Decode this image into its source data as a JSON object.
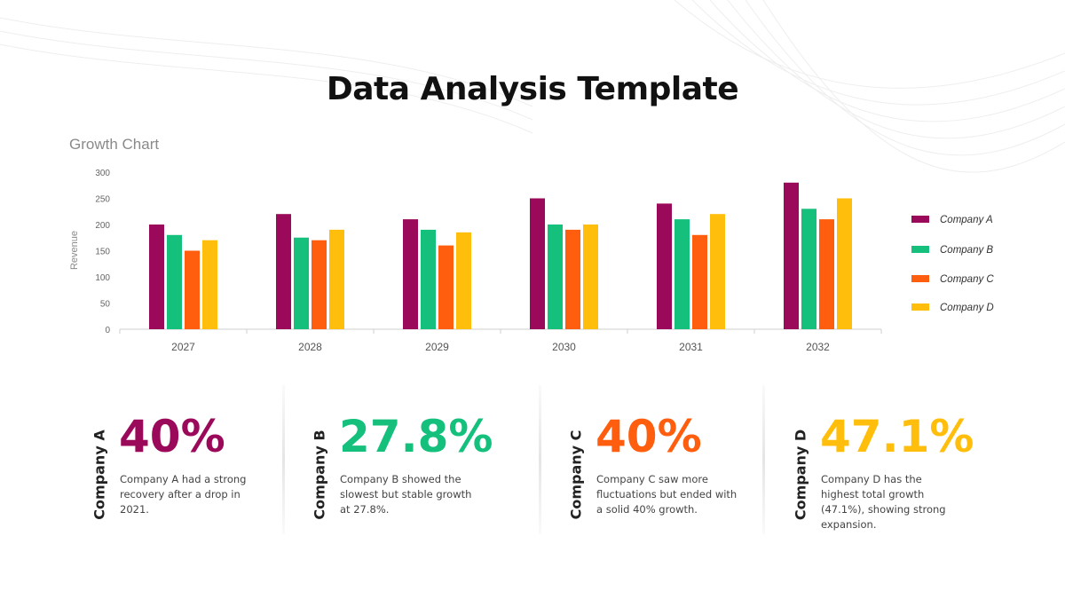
{
  "page": {
    "title": "Data Analysis Template"
  },
  "chart_data": {
    "type": "bar",
    "title": "Growth Chart",
    "xlabel": "",
    "ylabel": "Revenue",
    "ylim": [
      0,
      300
    ],
    "yticks": [
      0,
      50,
      100,
      150,
      200,
      250,
      300
    ],
    "categories": [
      "2027",
      "2028",
      "2029",
      "2030",
      "2031",
      "2032"
    ],
    "series": [
      {
        "name": "Company A",
        "color": "#9b0a5a",
        "values": [
          200,
          220,
          210,
          250,
          240,
          280
        ]
      },
      {
        "name": "Company B",
        "color": "#14c07c",
        "values": [
          180,
          175,
          190,
          200,
          210,
          230
        ]
      },
      {
        "name": "Company C",
        "color": "#ff5e0e",
        "values": [
          150,
          170,
          160,
          190,
          180,
          210
        ]
      },
      {
        "name": "Company D",
        "color": "#ffbe0b",
        "values": [
          170,
          190,
          185,
          200,
          220,
          250
        ]
      }
    ],
    "legend": "right",
    "grid": false
  },
  "stats": [
    {
      "name": "Company A",
      "value": "40%",
      "color": "#9b0a5a",
      "description": "Company A had a strong recovery after a drop in 2021."
    },
    {
      "name": "Company B",
      "value": "27.8%",
      "color": "#14c07c",
      "description": "Company B showed the slowest but stable growth at 27.8%."
    },
    {
      "name": "Company C",
      "value": "40%",
      "color": "#ff5e0e",
      "description": "Company C saw more fluctuations but ended with a solid 40% growth."
    },
    {
      "name": "Company D",
      "value": "47.1%",
      "color": "#ffbe0b",
      "description": "Company D has the highest total growth (47.1%), showing strong expansion."
    }
  ]
}
